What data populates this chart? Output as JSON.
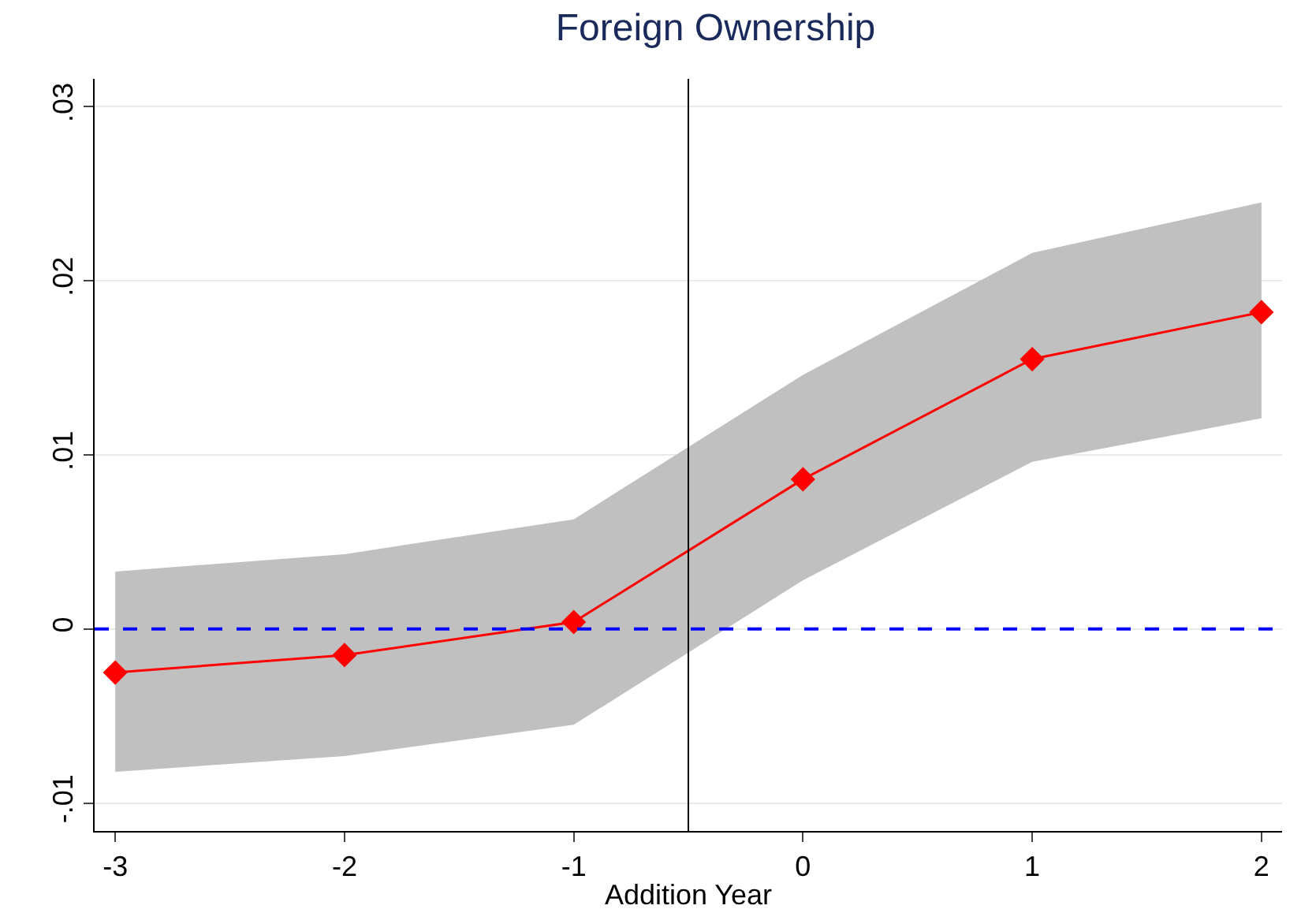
{
  "chart_data": {
    "type": "line",
    "title": "Foreign Ownership",
    "xlabel": "Addition Year",
    "x": [
      -3,
      -2,
      -1,
      0,
      1,
      2
    ],
    "series": [
      {
        "color": "#ff0000",
        "values": [
          -0.0025,
          -0.0015,
          0.0004,
          0.0086,
          0.0155,
          0.0182
        ],
        "lower": [
          -0.0082,
          -0.0073,
          -0.0055,
          0.0028,
          0.0096,
          0.0121
        ],
        "upper": [
          0.0033,
          0.0043,
          0.0063,
          0.0146,
          0.0216,
          0.0245
        ]
      }
    ],
    "xlim": [
      -3.09,
      2.09
    ],
    "xticks": [
      -3,
      -2,
      -1,
      0,
      1,
      2
    ],
    "ylim": [
      -0.0116,
      0.0316
    ],
    "yticks": [
      {
        "value": -0.01,
        "label": "-.01"
      },
      0,
      {
        "value": 0.01,
        "label": ".01"
      },
      {
        "value": 0.02,
        "label": ".02"
      },
      {
        "value": 0.03,
        "label": ".03"
      }
    ],
    "ref_lines": [
      {
        "axis": "y",
        "value": 0,
        "color": "#0000ff",
        "line_style": "dashed"
      },
      {
        "axis": "x",
        "value": -0.5,
        "color": "#000000",
        "line_style": "solid"
      }
    ],
    "grid": "y",
    "marker": "diamond",
    "line_style": "solid",
    "legend": false
  }
}
